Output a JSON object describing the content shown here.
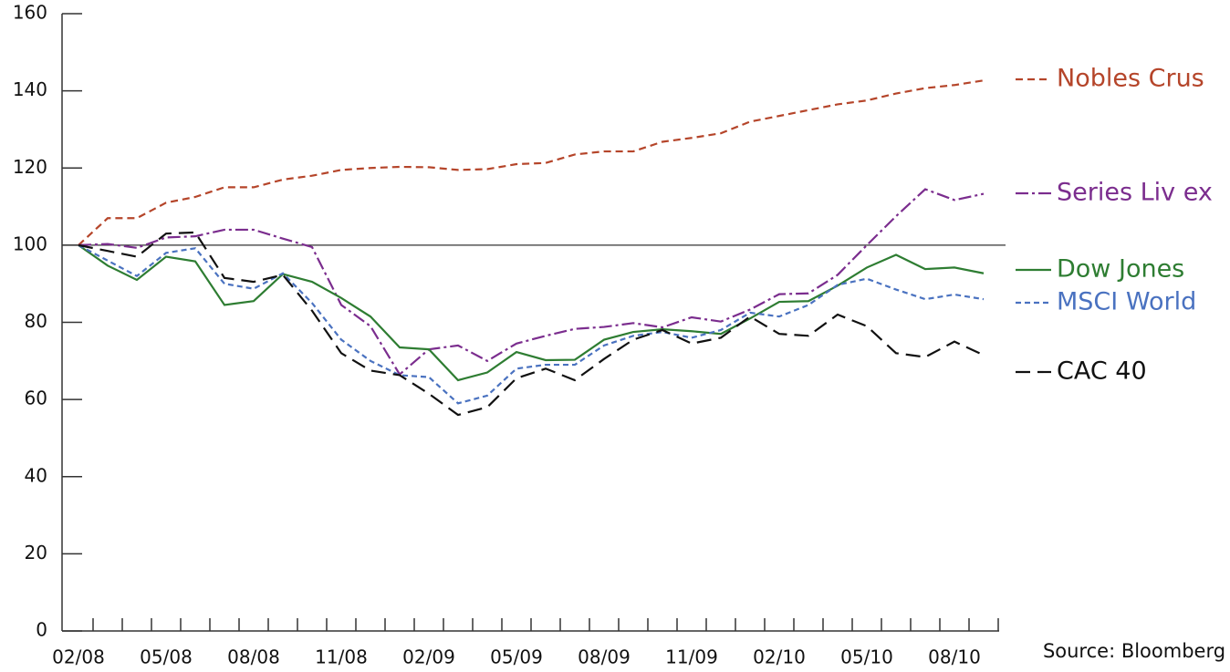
{
  "chart_data": {
    "type": "line",
    "categories": [
      "02/08",
      null,
      null,
      "05/08",
      null,
      null,
      "08/08",
      null,
      null,
      "11/08",
      null,
      null,
      "02/09",
      null,
      null,
      "05/09",
      null,
      null,
      "08/09",
      null,
      null,
      "11/09",
      null,
      null,
      "02/10",
      null,
      null,
      "05/10",
      null,
      null,
      "08/10",
      null
    ],
    "series": [
      {
        "name": "Nobles Crus",
        "color": "#b5452a",
        "values": [
          100,
          107,
          107,
          111,
          112.5,
          115,
          115,
          117,
          118,
          119.5,
          120,
          120.3,
          120.2,
          119.5,
          119.7,
          121,
          121.3,
          123.5,
          124.3,
          124.3,
          126.8,
          127.8,
          129,
          132,
          133.5,
          135,
          136.5,
          137.5,
          139.3,
          140.7,
          141.5,
          142.7
        ]
      },
      {
        "name": "Series Liv ex",
        "color": "#7b2d8e",
        "values": [
          100,
          100.3,
          99.3,
          102,
          102.3,
          104,
          104,
          101.7,
          99.5,
          84.5,
          79,
          66.5,
          73,
          74,
          70,
          74.5,
          76.5,
          78.3,
          78.8,
          79.8,
          78.7,
          81.3,
          80.2,
          83.3,
          87.3,
          87.5,
          92.3,
          100,
          107.5,
          114.5,
          111.7,
          113.3
        ]
      },
      {
        "name": "Dow Jones",
        "color": "#2e7d32",
        "values": [
          100,
          94.7,
          91,
          97,
          95.8,
          84.5,
          85.5,
          92.5,
          90.5,
          86.3,
          81.5,
          73.5,
          73,
          65,
          67,
          72.3,
          70.2,
          70.3,
          75.5,
          77.5,
          78.2,
          77.7,
          77,
          81,
          85.3,
          85.5,
          89.5,
          94.2,
          97.5,
          93.8,
          94.2,
          92.7
        ]
      },
      {
        "name": "MSCI World",
        "color": "#4a72c0",
        "values": [
          100,
          96,
          92,
          98,
          99.2,
          90,
          88.7,
          92.7,
          85,
          75.5,
          70,
          66.3,
          65.8,
          59,
          61,
          68,
          69,
          69,
          74,
          76.5,
          77.5,
          76,
          78,
          82.5,
          81.5,
          84.5,
          89.7,
          91.3,
          88.5,
          86,
          87.2,
          86
        ]
      },
      {
        "name": "CAC 40",
        "color": "#111111",
        "values": [
          100,
          98.5,
          97,
          103,
          103.3,
          91.5,
          90.5,
          92.3,
          83,
          72,
          67.5,
          66.3,
          61.5,
          56,
          58,
          65.5,
          68,
          65,
          70.5,
          75.5,
          78,
          74.5,
          76,
          81.5,
          77,
          76.5,
          82,
          79,
          72,
          71,
          75,
          71.5
        ]
      }
    ],
    "ylim": [
      0,
      160
    ],
    "yticks": [
      0,
      20,
      40,
      60,
      80,
      100,
      120,
      140,
      160
    ],
    "hline": 100,
    "source": "Source: Bloomberg"
  }
}
